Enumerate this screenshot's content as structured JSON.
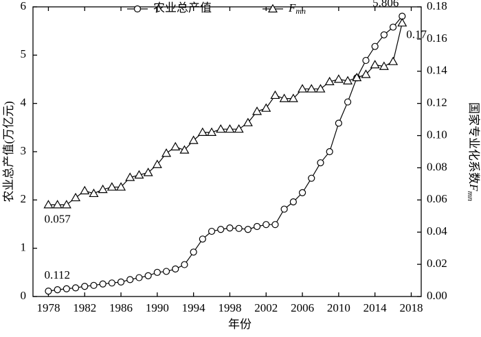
{
  "chart_data": {
    "type": "line",
    "x_label": "年份",
    "y_label": "农业总产值(万亿元)",
    "y2_label": "国家专业化系数Fmn",
    "x": [
      1978,
      1979,
      1980,
      1981,
      1982,
      1983,
      1984,
      1985,
      1986,
      1987,
      1988,
      1989,
      1990,
      1991,
      1992,
      1993,
      1994,
      1995,
      1996,
      1997,
      1998,
      1999,
      2000,
      2001,
      2002,
      2003,
      2004,
      2005,
      2006,
      2007,
      2008,
      2009,
      2010,
      2011,
      2012,
      2013,
      2014,
      2015,
      2016,
      2017
    ],
    "xlim": [
      1976.3,
      2019.1
    ],
    "xticks": [
      1978,
      1982,
      1986,
      1990,
      1994,
      1998,
      2002,
      2006,
      2010,
      2014,
      2018
    ],
    "ylim": [
      0,
      6
    ],
    "yticks": [
      0,
      1,
      2,
      3,
      4,
      5,
      6
    ],
    "y2lim": [
      0,
      0.18
    ],
    "y2ticks": [
      {
        "value": 0,
        "label": "0.00"
      },
      0.02,
      0.04,
      0.06,
      0.08,
      {
        "value": 0.1,
        "label": "0.10"
      },
      0.12,
      0.14,
      0.16,
      0.18
    ],
    "series": [
      {
        "name": "农业总产值",
        "color": "#000000",
        "marker": "circle",
        "values": [
          0.112,
          0.14,
          0.16,
          0.18,
          0.21,
          0.23,
          0.26,
          0.28,
          0.3,
          0.35,
          0.39,
          0.43,
          0.5,
          0.52,
          0.57,
          0.66,
          0.92,
          1.19,
          1.35,
          1.39,
          1.42,
          1.41,
          1.39,
          1.45,
          1.49,
          1.49,
          1.81,
          1.96,
          2.15,
          2.45,
          2.77,
          3.0,
          3.59,
          4.03,
          4.53,
          4.89,
          5.18,
          5.42,
          5.58,
          5.806
        ],
        "value_labels": [
          "0.112",
          null,
          null,
          null,
          null,
          null,
          null,
          null,
          null,
          null,
          null,
          null,
          null,
          null,
          null,
          null,
          null,
          null,
          null,
          null,
          null,
          null,
          null,
          null,
          null,
          null,
          null,
          null,
          null,
          null,
          null,
          null,
          null,
          null,
          null,
          null,
          null,
          null,
          null,
          "5.806"
        ]
      },
      {
        "name": "Fmn",
        "color": "#000000",
        "marker": "triangle",
        "axis": "y2",
        "values": [
          0.057,
          0.057,
          0.057,
          0.0614,
          0.0657,
          0.064,
          0.0665,
          0.068,
          0.068,
          0.074,
          0.0755,
          0.077,
          0.082,
          0.089,
          0.093,
          0.091,
          0.097,
          0.102,
          0.102,
          0.104,
          0.104,
          0.104,
          0.108,
          0.115,
          0.117,
          0.125,
          0.123,
          0.123,
          0.129,
          0.129,
          0.129,
          0.1335,
          0.135,
          0.134,
          0.136,
          0.138,
          0.144,
          0.143,
          0.146,
          0.17
        ],
        "value_labels": [
          "0.057",
          null,
          null,
          null,
          null,
          null,
          null,
          null,
          null,
          null,
          null,
          null,
          null,
          null,
          null,
          null,
          null,
          null,
          null,
          null,
          null,
          null,
          null,
          null,
          null,
          null,
          null,
          null,
          null,
          null,
          null,
          null,
          null,
          null,
          null,
          null,
          null,
          null,
          null,
          "0.17"
        ]
      }
    ]
  }
}
